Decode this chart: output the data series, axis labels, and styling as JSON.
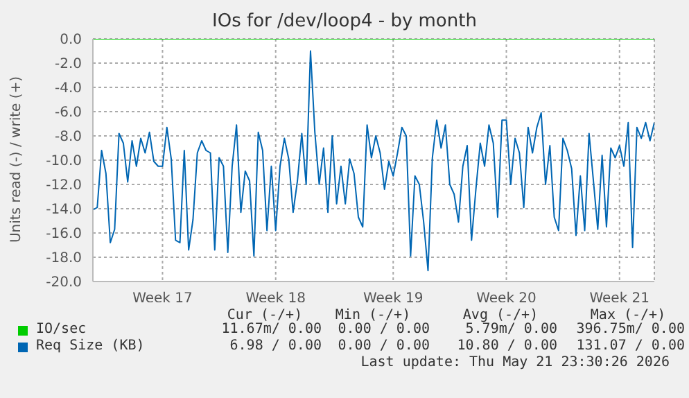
{
  "chart_data": {
    "type": "line",
    "title": "IOs for /dev/loop4 - by month",
    "ylabel": "Units read (-) / write (+)",
    "categories": [
      null,
      null,
      null,
      null,
      null,
      null,
      null,
      null,
      null,
      null,
      null,
      null,
      null,
      null,
      null,
      null,
      "Week 17",
      null,
      null,
      null,
      null,
      null,
      null,
      null,
      null,
      null,
      null,
      null,
      null,
      null,
      null,
      null,
      null,
      null,
      null,
      null,
      null,
      null,
      null,
      null,
      null,
      null,
      "Week 18",
      null,
      null,
      null,
      null,
      null,
      null,
      null,
      null,
      null,
      null,
      null,
      null,
      null,
      null,
      null,
      null,
      null,
      null,
      null,
      null,
      null,
      null,
      null,
      null,
      null,
      null,
      "Week 19",
      null,
      null,
      null,
      null,
      null,
      null,
      null,
      null,
      null,
      null,
      null,
      null,
      null,
      null,
      null,
      null,
      null,
      null,
      null,
      null,
      null,
      null,
      null,
      null,
      null,
      "Week 20",
      null,
      null,
      null,
      null,
      null,
      null,
      null,
      null,
      null,
      null,
      null,
      null,
      null,
      null,
      null,
      null,
      null,
      null,
      null,
      null,
      null,
      null,
      null,
      null,
      null,
      "Week 21",
      null,
      null,
      null,
      null,
      null,
      null,
      null,
      null
    ],
    "ylim": [
      -20,
      0
    ],
    "yticks": [
      {
        "value": -20,
        "label": "-20.0"
      },
      {
        "value": -18,
        "label": "-18.0"
      },
      {
        "value": -16,
        "label": "-16.0"
      },
      {
        "value": -14,
        "label": "-14.0"
      },
      {
        "value": -12,
        "label": "-12.0"
      },
      {
        "value": -10,
        "label": "-10.0"
      },
      {
        "value": -8,
        "label": "-8.0"
      },
      {
        "value": -6,
        "label": "-6.0"
      },
      {
        "value": -4,
        "label": "-4.0"
      },
      {
        "value": -2,
        "label": "-2.0"
      },
      {
        "value": 0,
        "label": "0.0"
      }
    ],
    "grid": true,
    "legend": "bottom",
    "series": [
      {
        "name": "IO/sec",
        "color": "#00cc00",
        "values": [
          0,
          0,
          0,
          0,
          0,
          0,
          0,
          0,
          0,
          0,
          0,
          0,
          0,
          0,
          0,
          0,
          0,
          0,
          0,
          0,
          0,
          0,
          0,
          0,
          0,
          0,
          0,
          0,
          0,
          0,
          0,
          0,
          0,
          0,
          0,
          0,
          0,
          0,
          0,
          0,
          0,
          0,
          0,
          0,
          0,
          0,
          0,
          0,
          0,
          0,
          0,
          0,
          0,
          0,
          0,
          0,
          0,
          0,
          0,
          0,
          0,
          0,
          0,
          0,
          0,
          0,
          0,
          0,
          0,
          0,
          0,
          0,
          0,
          0,
          0,
          0,
          0,
          0,
          0,
          0,
          0,
          0,
          0,
          0,
          0,
          0,
          0,
          0,
          0,
          0,
          0,
          0,
          0,
          0,
          0,
          0,
          0,
          0,
          0,
          0,
          0,
          0,
          0,
          0,
          0,
          0,
          0,
          0,
          0,
          0,
          0,
          0,
          0,
          0,
          0,
          0,
          0,
          0,
          0,
          0,
          0,
          0,
          0,
          0,
          0,
          0,
          0,
          0,
          0,
          0
        ]
      },
      {
        "name": "Req Size (KB)",
        "color": "#0066b3",
        "values": [
          -14.1,
          -13.9,
          -9.2,
          -11.1,
          -16.8,
          -15.7,
          -7.8,
          -8.6,
          -11.8,
          -8.4,
          -10.5,
          -8.2,
          -9.4,
          -7.7,
          -10.1,
          -10.5,
          -10.5,
          -7.3,
          -9.9,
          -16.6,
          -16.8,
          -9.2,
          -17.4,
          -14.9,
          -9.4,
          -8.4,
          -9.2,
          -9.4,
          -17.4,
          -9.8,
          -10.5,
          -17.6,
          -10.5,
          -7.1,
          -14.3,
          -10.9,
          -11.7,
          -17.9,
          -7.7,
          -9.2,
          -15.8,
          -10.5,
          -15.8,
          -10.5,
          -8.2,
          -9.9,
          -14.3,
          -11.7,
          -7.8,
          -12.0,
          -1.0,
          -7.7,
          -12.0,
          -9.0,
          -14.3,
          -8.0,
          -13.6,
          -10.5,
          -13.6,
          -9.9,
          -11.1,
          -14.7,
          -15.5,
          -7.1,
          -9.8,
          -8.0,
          -9.4,
          -12.4,
          -10.1,
          -11.3,
          -9.4,
          -7.3,
          -8.0,
          -17.9,
          -11.3,
          -12.0,
          -15.1,
          -19.1,
          -9.8,
          -6.7,
          -9.0,
          -7.1,
          -12.0,
          -12.8,
          -15.1,
          -10.5,
          -8.8,
          -16.6,
          -12.4,
          -8.6,
          -10.5,
          -7.1,
          -8.6,
          -14.7,
          -6.7,
          -6.7,
          -12.0,
          -8.2,
          -9.4,
          -13.9,
          -7.3,
          -9.4,
          -7.3,
          -6.1,
          -12.0,
          -8.8,
          -14.7,
          -15.8,
          -8.2,
          -9.2,
          -10.7,
          -16.2,
          -11.3,
          -15.8,
          -7.8,
          -11.7,
          -15.7,
          -9.6,
          -15.5,
          -9.0,
          -9.8,
          -8.8,
          -10.5,
          -6.9,
          -17.2,
          -7.3,
          -8.2,
          -6.9,
          -8.4,
          -6.9
        ]
      }
    ],
    "annotations": [
      "Cur (-/+)",
      "Min (-/+)",
      "Avg (-/+)",
      "Max (-/+)",
      "11.67m/ 0.00",
      "0.00 / 0.00",
      "5.79m/ 0.00",
      "396.75m/ 0.00",
      "6.98 / 0.00",
      "0.00 / 0.00",
      "10.80 / 0.00",
      "131.07 / 0.00",
      "Last update: Thu May 21 23:30:26 2026"
    ]
  }
}
